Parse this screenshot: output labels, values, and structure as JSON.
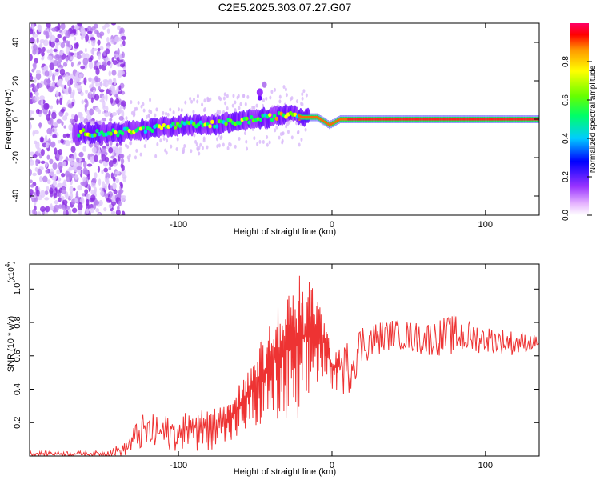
{
  "chart_data": [
    {
      "type": "heatmap",
      "title": "C2E5.2025.303.07.27.G07",
      "xlabel": "Height of straight line (km)",
      "ylabel": "Frequency (Hz)",
      "xlim": [
        -197,
        135
      ],
      "ylim": [
        -50,
        50
      ],
      "xticks": [
        -100,
        0,
        100
      ],
      "yticks": [
        -40,
        -20,
        0,
        20,
        40
      ],
      "colorbar": {
        "label": "Normalized spectral amplitude",
        "range": [
          0,
          1
        ],
        "ticks": [
          "0.0",
          "0.2",
          "0.4",
          "0.6",
          "0.8"
        ]
      },
      "description_points": {
        "noise_region_x": [
          -197,
          -135
        ],
        "signal_ridge": [
          {
            "x": -165,
            "y": -7
          },
          {
            "x": -140,
            "y": -7
          },
          {
            "x": -120,
            "y": -5
          },
          {
            "x": -100,
            "y": -3
          },
          {
            "x": -80,
            "y": -3
          },
          {
            "x": -60,
            "y": -1
          },
          {
            "x": -40,
            "y": 1
          },
          {
            "x": -25,
            "y": 3
          },
          {
            "x": -20,
            "y": 1
          },
          {
            "x": -10,
            "y": 1
          },
          {
            "x": -2,
            "y": -3
          },
          {
            "x": 5,
            "y": 0
          },
          {
            "x": 135,
            "y": 0
          }
        ],
        "bump": {
          "x": -47,
          "y": 14
        }
      }
    },
    {
      "type": "line",
      "xlabel": "Height of straight line (km)",
      "ylabel": "SNR (10 * v/v)",
      "yscale_label": "(x10",
      "yscale_exp": "4",
      "yscale_close": ")",
      "xlim": [
        -197,
        135
      ],
      "ylim": [
        0,
        1.15
      ],
      "xticks": [
        -100,
        0,
        100
      ],
      "yticks": [
        0.2,
        0.4,
        0.6,
        0.8,
        1.0
      ],
      "ytick_labels": [
        "0.2",
        "0.4",
        "0.6",
        "0.8",
        "1.0"
      ],
      "series": [
        {
          "name": "SNR",
          "color": "#ee3333",
          "envelope": [
            {
              "x": -197,
              "lo": 0.0,
              "hi": 0.03
            },
            {
              "x": -150,
              "lo": 0.0,
              "hi": 0.03
            },
            {
              "x": -135,
              "lo": 0.0,
              "hi": 0.08
            },
            {
              "x": -125,
              "lo": 0.03,
              "hi": 0.25
            },
            {
              "x": -100,
              "lo": 0.03,
              "hi": 0.25
            },
            {
              "x": -85,
              "lo": 0.03,
              "hi": 0.28
            },
            {
              "x": -70,
              "lo": 0.05,
              "hi": 0.3
            },
            {
              "x": -60,
              "lo": 0.1,
              "hi": 0.45
            },
            {
              "x": -50,
              "lo": 0.15,
              "hi": 0.65
            },
            {
              "x": -40,
              "lo": 0.2,
              "hi": 0.8
            },
            {
              "x": -30,
              "lo": 0.15,
              "hi": 1.0
            },
            {
              "x": -20,
              "lo": 0.1,
              "hi": 1.1
            },
            {
              "x": -12,
              "lo": 0.4,
              "hi": 1.05
            },
            {
              "x": -5,
              "lo": 0.45,
              "hi": 0.85
            },
            {
              "x": 0,
              "lo": 0.4,
              "hi": 0.6
            },
            {
              "x": 10,
              "lo": 0.35,
              "hi": 0.7
            },
            {
              "x": 20,
              "lo": 0.55,
              "hi": 0.8
            },
            {
              "x": 40,
              "lo": 0.65,
              "hi": 0.82
            },
            {
              "x": 60,
              "lo": 0.6,
              "hi": 0.8
            },
            {
              "x": 80,
              "lo": 0.6,
              "hi": 0.85
            },
            {
              "x": 100,
              "lo": 0.62,
              "hi": 0.78
            },
            {
              "x": 120,
              "lo": 0.6,
              "hi": 0.75
            },
            {
              "x": 135,
              "lo": 0.65,
              "hi": 0.72
            }
          ]
        }
      ]
    }
  ]
}
